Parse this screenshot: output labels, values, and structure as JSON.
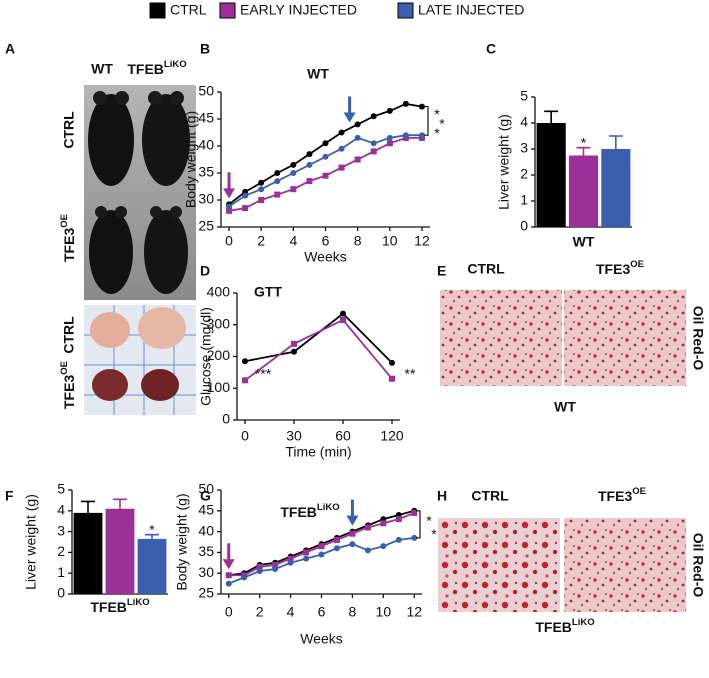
{
  "legend": [
    {
      "name": "CTRL",
      "color": "#000000"
    },
    {
      "name": "EARLY INJECTED",
      "color": "#9c2f98"
    },
    {
      "name": "LATE INJECTED",
      "color": "#3a5fae"
    }
  ],
  "panel_letters": [
    "A",
    "B",
    "C",
    "D",
    "E",
    "F",
    "G",
    "H"
  ],
  "panel_a": {
    "columns": [
      "WT",
      {
        "base": "TFEB",
        "sup": "LiKO"
      }
    ],
    "rows": [
      "CTRL",
      {
        "base": "TFE3",
        "sup": "OE"
      },
      "CTRL",
      {
        "base": "TFE3",
        "sup": "OE"
      }
    ]
  },
  "panel_e": {
    "columns": [
      "CTRL",
      {
        "base": "TFE3",
        "sup": "OE"
      }
    ],
    "stain": "Oil Red-O",
    "genotype": "WT"
  },
  "panel_h": {
    "columns": [
      "CTRL",
      {
        "base": "TFE3",
        "sup": "OE"
      }
    ],
    "stain": "Oil Red-O",
    "genotype": {
      "base": "TFEB",
      "sup": "LiKO"
    }
  },
  "chart_data": [
    {
      "type": "line",
      "title": "WT",
      "xlabel": "Weeks",
      "ylabel": "Body weight (g)",
      "x": [
        0,
        1,
        2,
        3,
        4,
        5,
        6,
        7,
        8,
        9,
        10,
        11,
        12
      ],
      "xlim": [
        -0.5,
        12.5
      ],
      "xticks": [
        0,
        2,
        4,
        6,
        8,
        10,
        12
      ],
      "ylim": [
        25,
        50
      ],
      "yticks": [
        25,
        30,
        35,
        40,
        45,
        50
      ],
      "series": [
        {
          "color": "#000000",
          "values": [
            29.2,
            31.5,
            33.2,
            35,
            36.5,
            38.5,
            40.5,
            42.5,
            44,
            45.5,
            46.5,
            47.8,
            47.3
          ]
        },
        {
          "color": "#9c2f98",
          "values": [
            28,
            28.5,
            30,
            31,
            32,
            33.5,
            34.5,
            36,
            37.5,
            39,
            40.5,
            41.5,
            41.5
          ]
        },
        {
          "color": "#3a5fae",
          "values": [
            28.8,
            30.8,
            32,
            33.5,
            35,
            36.5,
            38,
            39.5,
            41.5,
            40.5,
            41.5,
            42,
            42
          ]
        }
      ],
      "arrows": [
        {
          "x": 0,
          "color": "#9c2f98"
        },
        {
          "x": 7.5,
          "color": "#3a5fae"
        }
      ],
      "significance": [
        "*",
        "*",
        "*"
      ]
    },
    {
      "type": "bar",
      "xlabel": "WT",
      "ylabel": "Liver weight (g)",
      "categories": [
        null,
        null,
        null
      ],
      "values": [
        4.0,
        2.75,
        3.0
      ],
      "errors": [
        0.45,
        0.3,
        0.5
      ],
      "colors": [
        "#000000",
        "#9c2f98",
        "#3a5fae"
      ],
      "ylim": [
        0,
        5
      ],
      "yticks": [
        0,
        1,
        2,
        3,
        4,
        5
      ],
      "annotations": [
        null,
        "*",
        null
      ]
    },
    {
      "type": "line",
      "title": "GTT",
      "xlabel": "Time (min)",
      "ylabel": "Glucose (mg/dl)",
      "categories": [
        "0",
        "30",
        "60",
        "120"
      ],
      "ylim": [
        0,
        400
      ],
      "yticks": [
        0,
        100,
        200,
        300,
        400
      ],
      "series": [
        {
          "color": "#000000",
          "values": [
            185,
            215,
            335,
            180
          ]
        },
        {
          "color": "#9c2f98",
          "values": [
            125,
            240,
            315,
            130
          ]
        }
      ],
      "annotations": [
        "***",
        null,
        null,
        "**"
      ]
    },
    {
      "type": "bar",
      "xlabel": {
        "base": "TFEB",
        "sup": "LiKO"
      },
      "ylabel": "Liver weight (g)",
      "categories": [
        null,
        null,
        null
      ],
      "values": [
        3.9,
        4.1,
        2.65
      ],
      "errors": [
        0.55,
        0.45,
        0.2
      ],
      "colors": [
        "#000000",
        "#9c2f98",
        "#3a5fae"
      ],
      "ylim": [
        0,
        5
      ],
      "yticks": [
        0,
        1,
        2,
        3,
        4,
        5
      ],
      "annotations": [
        null,
        null,
        "*"
      ]
    },
    {
      "type": "line",
      "title": {
        "base": "TFEB",
        "sup": "LiKO"
      },
      "xlabel": "Weeks",
      "ylabel": "Body weight (g)",
      "x": [
        0,
        1,
        2,
        3,
        4,
        5,
        6,
        7,
        8,
        9,
        10,
        11,
        12
      ],
      "xlim": [
        -0.5,
        12.5
      ],
      "xticks": [
        0,
        2,
        4,
        6,
        8,
        10,
        12
      ],
      "ylim": [
        25,
        50
      ],
      "yticks": [
        25,
        30,
        35,
        40,
        45,
        50
      ],
      "series": [
        {
          "color": "#000000",
          "values": [
            29.5,
            30,
            32,
            32.5,
            34,
            35.5,
            37,
            38.5,
            40,
            41.5,
            43,
            44,
            45
          ]
        },
        {
          "color": "#9c2f98",
          "values": [
            29.5,
            29.5,
            31.5,
            32,
            33.5,
            35,
            36.5,
            38,
            39.5,
            41,
            42,
            43,
            44.5
          ]
        },
        {
          "color": "#3a5fae",
          "values": [
            27.5,
            29,
            30.5,
            31,
            32.5,
            33.5,
            34.5,
            36,
            37,
            35.5,
            36.5,
            38,
            38.5
          ]
        }
      ],
      "arrows": [
        {
          "x": 0,
          "color": "#9c2f98"
        },
        {
          "x": 8,
          "color": "#3a5fae"
        }
      ],
      "significance": [
        "*",
        "*"
      ]
    }
  ]
}
